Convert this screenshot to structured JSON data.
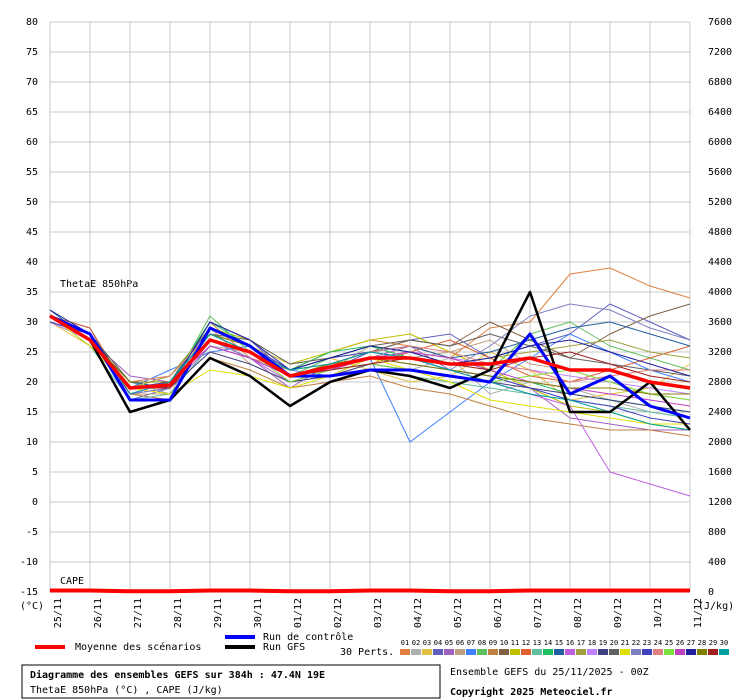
{
  "chart_data": {
    "type": "line",
    "title": "Diagramme des ensembles GEFS sur 384h : 47.4N 19E",
    "subtitle": "ThetaE 850hPa (°C) , CAPE (J/kg)",
    "run_info": "Ensemble GEFS du 25/11/2025 - 00Z",
    "copyright": "Copyright 2025 Meteociel.fr",
    "annotations": [
      "ThetaE 850hPa",
      "CAPE"
    ],
    "y_label": "(°C)",
    "y2_label": "(J/kg)",
    "perturbation_label": "30 Perts.",
    "categories": [
      "25/11",
      "26/11",
      "27/11",
      "28/11",
      "29/11",
      "30/11",
      "01/12",
      "02/12",
      "03/12",
      "04/12",
      "05/12",
      "06/12",
      "07/12",
      "08/12",
      "09/12",
      "10/12",
      "11/12"
    ],
    "ylim": [
      -15,
      80
    ],
    "yticks": [
      -15,
      -10,
      -5,
      0,
      5,
      10,
      15,
      20,
      25,
      30,
      35,
      40,
      45,
      50,
      55,
      60,
      65,
      70,
      75,
      80
    ],
    "y2lim": [
      0,
      7600
    ],
    "y2ticks": [
      0,
      400,
      800,
      1200,
      1600,
      2000,
      2400,
      2800,
      3200,
      3600,
      4000,
      4400,
      4800,
      5200,
      5600,
      6000,
      6400,
      6800,
      7200,
      7600
    ],
    "grid": true,
    "series": [
      {
        "name": "01",
        "color": "#e08040",
        "values": [
          31,
          28,
          18,
          20,
          30,
          24,
          22,
          25,
          27,
          26,
          24,
          29,
          30,
          38,
          39,
          36,
          34
        ]
      },
      {
        "name": "02",
        "color": "#b0b0b0",
        "values": [
          31,
          27,
          20,
          18,
          26,
          25,
          20,
          21,
          23,
          22,
          24,
          18,
          20,
          19,
          17,
          15,
          14
        ]
      },
      {
        "name": "03",
        "color": "#e0c040",
        "values": [
          30,
          26,
          19,
          21,
          28,
          26,
          23,
          24,
          22,
          20,
          21,
          25,
          22,
          17,
          18,
          19,
          23
        ]
      },
      {
        "name": "04",
        "color": "#6060c0",
        "values": [
          31,
          29,
          17,
          19,
          30,
          27,
          21,
          22,
          25,
          27,
          28,
          24,
          26,
          28,
          33,
          30,
          27
        ]
      },
      {
        "name": "05",
        "color": "#a060c0",
        "values": [
          31,
          27,
          21,
          20,
          27,
          24,
          19,
          23,
          24,
          26,
          22,
          21,
          19,
          14,
          13,
          12,
          12
        ]
      },
      {
        "name": "06",
        "color": "#c0a080",
        "values": [
          30,
          28,
          18,
          18,
          29,
          23,
          20,
          22,
          26,
          24,
          25,
          27,
          23,
          22,
          20,
          18,
          17
        ]
      },
      {
        "name": "07",
        "color": "#4080ff",
        "values": [
          31,
          26,
          19,
          22,
          25,
          26,
          22,
          21,
          24,
          10,
          15,
          20,
          24,
          28,
          25,
          22,
          20
        ]
      },
      {
        "name": "08",
        "color": "#60c060",
        "values": [
          32,
          28,
          20,
          19,
          31,
          25,
          21,
          24,
          26,
          25,
          23,
          22,
          28,
          30,
          26,
          24,
          22
        ]
      },
      {
        "name": "09",
        "color": "#c08040",
        "values": [
          31,
          27,
          18,
          17,
          24,
          22,
          19,
          20,
          21,
          19,
          18,
          16,
          14,
          13,
          12,
          12,
          11
        ]
      },
      {
        "name": "10",
        "color": "#806040",
        "values": [
          31,
          28,
          19,
          20,
          28,
          26,
          22,
          23,
          25,
          27,
          26,
          30,
          27,
          24,
          28,
          31,
          33
        ]
      },
      {
        "name": "11",
        "color": "#c0c000",
        "values": [
          30,
          27,
          20,
          21,
          29,
          27,
          23,
          25,
          27,
          28,
          25,
          22,
          19,
          16,
          15,
          13,
          12
        ]
      },
      {
        "name": "12",
        "color": "#e06030",
        "values": [
          31,
          29,
          18,
          19,
          27,
          25,
          21,
          22,
          23,
          25,
          27,
          24,
          21,
          20,
          22,
          24,
          26
        ]
      },
      {
        "name": "13",
        "color": "#60c0a0",
        "values": [
          31,
          26,
          17,
          18,
          26,
          24,
          20,
          21,
          22,
          21,
          20,
          19,
          18,
          17,
          16,
          15,
          14
        ]
      },
      {
        "name": "14",
        "color": "#20c060",
        "values": [
          31,
          28,
          19,
          20,
          30,
          26,
          22,
          25,
          26,
          24,
          22,
          21,
          20,
          18,
          17,
          16,
          15
        ]
      },
      {
        "name": "15",
        "color": "#2060a0",
        "values": [
          32,
          27,
          20,
          19,
          28,
          25,
          21,
          23,
          25,
          26,
          24,
          25,
          27,
          29,
          30,
          28,
          26
        ]
      },
      {
        "name": "16",
        "color": "#c060e0",
        "values": [
          31,
          27,
          18,
          19,
          26,
          24,
          20,
          22,
          24,
          23,
          22,
          20,
          18,
          16,
          5,
          3,
          1
        ]
      },
      {
        "name": "17",
        "color": "#a0a040",
        "values": [
          31,
          28,
          19,
          21,
          29,
          26,
          22,
          24,
          25,
          24,
          23,
          24,
          25,
          26,
          27,
          25,
          24
        ]
      },
      {
        "name": "18",
        "color": "#c080ff",
        "values": [
          30,
          27,
          18,
          20,
          27,
          25,
          21,
          22,
          24,
          25,
          24,
          23,
          22,
          21,
          20,
          19,
          18
        ]
      },
      {
        "name": "19",
        "color": "#404080",
        "values": [
          31,
          27,
          19,
          19,
          25,
          23,
          20,
          21,
          23,
          22,
          21,
          20,
          19,
          18,
          17,
          16,
          15
        ]
      },
      {
        "name": "20",
        "color": "#606060",
        "values": [
          31,
          28,
          20,
          20,
          28,
          27,
          23,
          24,
          26,
          27,
          26,
          28,
          26,
          24,
          23,
          22,
          21
        ]
      },
      {
        "name": "21",
        "color": "#e0e000",
        "values": [
          31,
          26,
          19,
          18,
          22,
          21,
          19,
          21,
          24,
          22,
          20,
          17,
          16,
          15,
          14,
          13,
          13
        ]
      },
      {
        "name": "22",
        "color": "#8080c0",
        "values": [
          31,
          27,
          18,
          19,
          27,
          24,
          21,
          23,
          24,
          23,
          22,
          26,
          31,
          33,
          32,
          29,
          27
        ]
      },
      {
        "name": "23",
        "color": "#4040c0",
        "values": [
          30,
          28,
          19,
          20,
          29,
          26,
          22,
          24,
          25,
          24,
          22,
          21,
          19,
          17,
          16,
          14,
          13
        ]
      },
      {
        "name": "24",
        "color": "#e08080",
        "values": [
          31,
          27,
          20,
          21,
          28,
          25,
          21,
          23,
          25,
          26,
          25,
          23,
          22,
          20,
          21,
          22,
          22
        ]
      },
      {
        "name": "25",
        "color": "#80e040",
        "values": [
          31,
          28,
          19,
          19,
          27,
          25,
          20,
          22,
          23,
          22,
          21,
          20,
          21,
          22,
          20,
          18,
          17
        ]
      },
      {
        "name": "26",
        "color": "#c040c0",
        "values": [
          31,
          27,
          18,
          20,
          26,
          24,
          21,
          22,
          24,
          25,
          24,
          22,
          20,
          19,
          18,
          17,
          16
        ]
      },
      {
        "name": "27",
        "color": "#2020a0",
        "values": [
          32,
          28,
          19,
          19,
          30,
          27,
          22,
          24,
          26,
          25,
          23,
          24,
          26,
          27,
          25,
          23,
          21
        ]
      },
      {
        "name": "28",
        "color": "#808000",
        "values": [
          31,
          27,
          20,
          20,
          28,
          26,
          21,
          23,
          24,
          23,
          22,
          21,
          20,
          19,
          19,
          18,
          18
        ]
      },
      {
        "name": "29",
        "color": "#a02020",
        "values": [
          31,
          27,
          19,
          19,
          27,
          25,
          21,
          22,
          23,
          24,
          23,
          22,
          24,
          25,
          23,
          21,
          20
        ]
      },
      {
        "name": "30",
        "color": "#00a0a0",
        "values": [
          31,
          28,
          18,
          20,
          28,
          25,
          22,
          23,
          25,
          24,
          22,
          20,
          18,
          17,
          15,
          13,
          12
        ]
      },
      {
        "name": "Run GFS",
        "color": "#000000",
        "values": [
          31,
          27,
          15,
          17,
          24,
          21,
          16,
          20,
          22,
          21,
          19,
          22,
          35,
          15,
          15,
          20,
          12
        ]
      },
      {
        "name": "Run de contrôle",
        "color": "#0000ff",
        "values": [
          31,
          28,
          17,
          17,
          29,
          26,
          21,
          21,
          22,
          22,
          21,
          20,
          28,
          18,
          21,
          16,
          14
        ]
      },
      {
        "name": "Moyenne des scénarios",
        "color": "#ff0000",
        "values": [
          31,
          27,
          19,
          19.5,
          27,
          25,
          21,
          22.5,
          24,
          24,
          23,
          23,
          24,
          22,
          22,
          20,
          19
        ]
      },
      {
        "name": "CAPE",
        "color": "#ff0000",
        "axis": "y2",
        "values": [
          20,
          20,
          10,
          10,
          20,
          20,
          10,
          10,
          20,
          20,
          10,
          10,
          20,
          20,
          20,
          20,
          20
        ]
      }
    ]
  }
}
